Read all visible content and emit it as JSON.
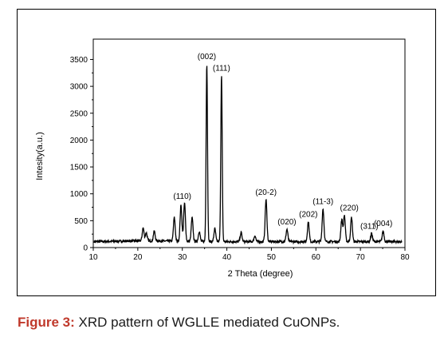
{
  "chart_data": {
    "type": "line",
    "title": "",
    "xlabel": "2 Theta (degree)",
    "ylabel": "Intesity(a.u.)",
    "xlim": [
      10,
      80
    ],
    "ylim": [
      0,
      3700
    ],
    "xticks": [
      "10",
      "20",
      "30",
      "40",
      "50",
      "60",
      "70",
      "80"
    ],
    "yticks": [
      "0",
      "500",
      "1000",
      "1500",
      "2000",
      "2500",
      "3000",
      "3500"
    ],
    "baseline": 110,
    "peaks": [
      {
        "x": 21.2,
        "y": 350
      },
      {
        "x": 21.9,
        "y": 260
      },
      {
        "x": 23.7,
        "y": 290
      },
      {
        "x": 28.2,
        "y": 550
      },
      {
        "x": 29.7,
        "y": 780
      },
      {
        "x": 30.5,
        "y": 820
      },
      {
        "x": 32.2,
        "y": 550
      },
      {
        "x": 33.8,
        "y": 300
      },
      {
        "x": 35.5,
        "y": 3420
      },
      {
        "x": 37.3,
        "y": 350
      },
      {
        "x": 38.8,
        "y": 3200
      },
      {
        "x": 43.2,
        "y": 280
      },
      {
        "x": 46.3,
        "y": 220
      },
      {
        "x": 48.8,
        "y": 890
      },
      {
        "x": 53.5,
        "y": 340
      },
      {
        "x": 58.3,
        "y": 480
      },
      {
        "x": 61.6,
        "y": 720
      },
      {
        "x": 65.8,
        "y": 520
      },
      {
        "x": 66.4,
        "y": 600
      },
      {
        "x": 68.0,
        "y": 560
      },
      {
        "x": 72.5,
        "y": 260
      },
      {
        "x": 75.1,
        "y": 310
      }
    ],
    "annotations": [
      {
        "text": "(002)",
        "x": 35.5,
        "y": 3420
      },
      {
        "text": "(111)",
        "x": 38.8,
        "y": 3200
      },
      {
        "text": "(110)",
        "x": 30.0,
        "y": 820
      },
      {
        "text": "(20-2)",
        "x": 48.8,
        "y": 890
      },
      {
        "text": "(020)",
        "x": 53.5,
        "y": 340
      },
      {
        "text": "(202)",
        "x": 58.3,
        "y": 480
      },
      {
        "text": "(11-3)",
        "x": 61.6,
        "y": 720
      },
      {
        "text": "(220)",
        "x": 67.5,
        "y": 600
      },
      {
        "text": "(311)",
        "x": 72.0,
        "y": 260
      },
      {
        "text": "(004)",
        "x": 75.1,
        "y": 310
      }
    ]
  },
  "caption": {
    "label": "Figure 3:",
    "text": " XRD pattern of WGLLE mediated CuONPs."
  }
}
